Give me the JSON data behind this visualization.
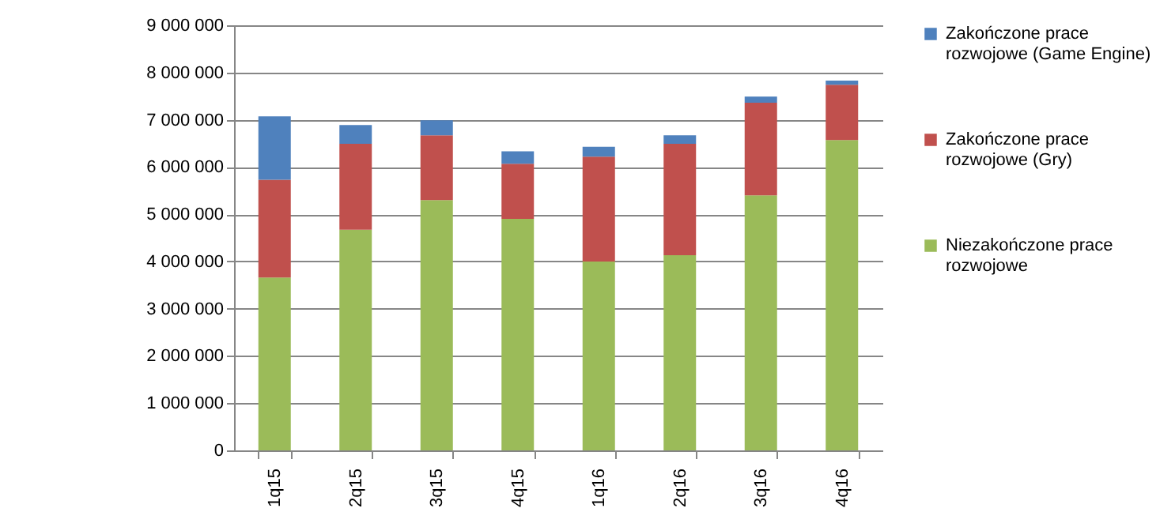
{
  "chart_data": {
    "type": "bar",
    "stacked": true,
    "categories": [
      "1q15",
      "2q15",
      "3q15",
      "4q15",
      "1q16",
      "2q16",
      "3q16",
      "4q16"
    ],
    "series": [
      {
        "name": "Niezakończone prace rozwojowe",
        "color": "#9bbb59",
        "values": [
          3660000,
          4670000,
          5300000,
          4900000,
          4000000,
          4130000,
          5400000,
          6570000
        ]
      },
      {
        "name": "Zakończone prace rozwojowe (Gry)",
        "color": "#c0504d",
        "values": [
          2070000,
          1820000,
          1370000,
          1170000,
          2220000,
          2360000,
          1960000,
          1170000
        ]
      },
      {
        "name": "Zakończone prace rozwojowe (Game Engine)",
        "color": "#4f81bd",
        "values": [
          1340000,
          400000,
          320000,
          260000,
          210000,
          180000,
          130000,
          90000
        ]
      }
    ],
    "ylim": [
      0,
      9000000
    ],
    "yticks": [
      0,
      {
        "value": 1000000,
        "label": "1 000 000"
      },
      {
        "value": 2000000,
        "label": "2 000 000"
      },
      {
        "value": 3000000,
        "label": "3 000 000"
      },
      {
        "value": 4000000,
        "label": "4 000 000"
      },
      {
        "value": 5000000,
        "label": "5 000 000"
      },
      {
        "value": 6000000,
        "label": "6 000 000"
      },
      {
        "value": 7000000,
        "label": "7 000 000"
      },
      {
        "value": 8000000,
        "label": "8 000 000"
      },
      {
        "value": 9000000,
        "label": "9 000 000"
      }
    ],
    "grid": "y",
    "legend": "right"
  }
}
